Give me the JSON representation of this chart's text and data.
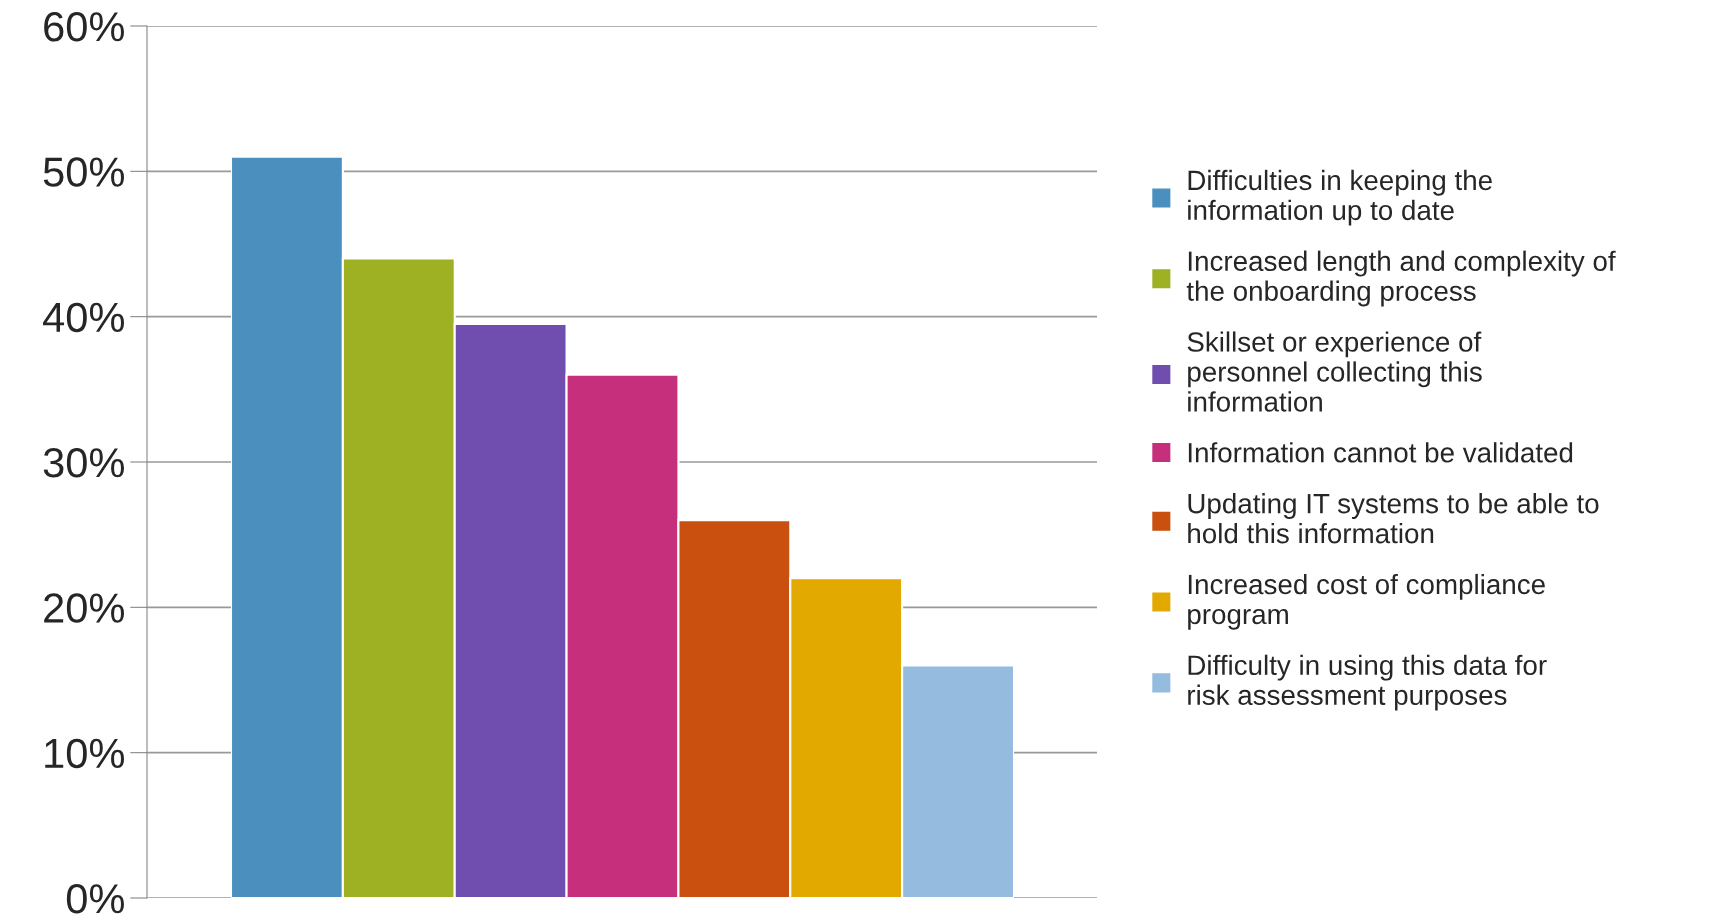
{
  "chart_data": {
    "type": "bar",
    "categories": [
      null,
      null,
      null,
      null,
      null,
      null,
      null
    ],
    "series": [
      {
        "name": "Difficulties in keeping the information up to date",
        "color": "#4a8fbd",
        "values": [
          51,
          null,
          null,
          null,
          null,
          null,
          null
        ]
      },
      {
        "name": "Increased length and complexity of the onboarding process",
        "color": "#9db123",
        "values": [
          null,
          44,
          null,
          null,
          null,
          null,
          null
        ]
      },
      {
        "name": "Skillset or experience of personnel collecting this information",
        "color": "#704eb0",
        "values": [
          null,
          null,
          39.5,
          null,
          null,
          null,
          null
        ]
      },
      {
        "name": "Information cannot be validated",
        "color": "#c52f7c",
        "values": [
          null,
          null,
          null,
          36,
          null,
          null,
          null
        ]
      },
      {
        "name": "Updating IT systems to be able to hold this information",
        "color": "#c9500e",
        "values": [
          null,
          null,
          null,
          null,
          26,
          null,
          null
        ]
      },
      {
        "name": "Increased cost of compliance program",
        "color": "#e2a900",
        "values": [
          null,
          null,
          null,
          null,
          null,
          22,
          null
        ]
      },
      {
        "name": "Difficulty in using this data for risk assessment purposes",
        "color": "#95bbdf",
        "values": [
          null,
          null,
          null,
          null,
          null,
          null,
          16
        ]
      }
    ],
    "ylim": [
      0,
      60
    ],
    "yticks": [
      {
        "value": 0,
        "label": "0%"
      },
      {
        "value": 10,
        "label": "10%"
      },
      {
        "value": 20,
        "label": "20%"
      },
      {
        "value": 30,
        "label": "30%"
      },
      {
        "value": 40,
        "label": "40%"
      },
      {
        "value": 50,
        "label": "50%"
      },
      {
        "value": 60,
        "label": "60%"
      }
    ],
    "stacked": true,
    "grid": "y",
    "legend": "right"
  }
}
